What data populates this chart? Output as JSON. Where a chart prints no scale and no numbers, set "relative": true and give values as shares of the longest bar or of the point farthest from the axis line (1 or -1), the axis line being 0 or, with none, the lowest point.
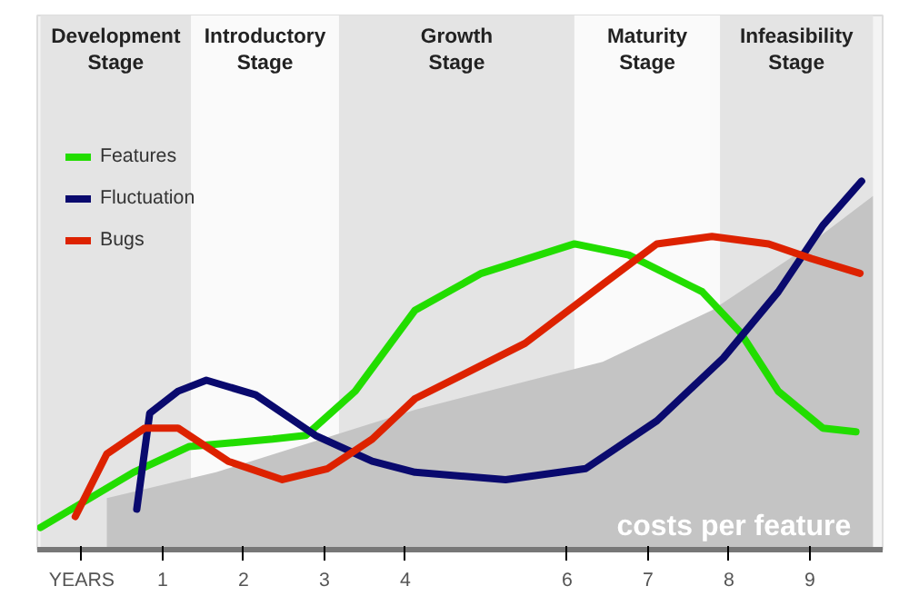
{
  "chart_data": {
    "type": "line",
    "relative": true,
    "legend": "top left",
    "marker": "none",
    "line_style": "solid",
    "grid": false,
    "xlim": [
      -0.55,
      9.9
    ],
    "xticks": [
      {
        "value": 0,
        "label": "YEARS"
      },
      1,
      2,
      3,
      4,
      6,
      7,
      8,
      9
    ],
    "bands": [
      {
        "axis": "x",
        "from": -0.51,
        "to": 1.35,
        "label": "Development Stage",
        "color": "#e4e4e4"
      },
      {
        "axis": "x",
        "from": 1.35,
        "to": 3.18,
        "label": "Introductory Stage",
        "color": "#fafafa"
      },
      {
        "axis": "x",
        "from": 3.18,
        "to": 6.09,
        "label": "Growth Stage",
        "color": "#e4e4e4"
      },
      {
        "axis": "x",
        "from": 6.09,
        "to": 7.89,
        "label": "Maturity Stage",
        "color": "#fafafa"
      },
      {
        "axis": "x",
        "from": 7.89,
        "to": 9.78,
        "label": "Infeasibility Stage",
        "color": "#e4e4e4"
      }
    ],
    "series": [
      {
        "name": "costs per feature",
        "type": "area",
        "color": "#c4c4c4",
        "x": [
          0.31,
          1.66,
          4.12,
          6.44,
          7.79,
          8.82,
          9.78
        ],
        "values": [
          0.14,
          0.21,
          0.38,
          0.51,
          0.65,
          0.8,
          0.96
        ]
      },
      {
        "name": "Features",
        "color": "#22dd00",
        "x": [
          -0.51,
          0.64,
          1.33,
          2.36,
          2.77,
          3.38,
          4.12,
          4.94,
          6.09,
          6.76,
          7.67,
          8.14,
          8.61,
          9.16,
          9.57
        ],
        "values": [
          0.06,
          0.21,
          0.28,
          0.3,
          0.31,
          0.43,
          0.65,
          0.75,
          0.83,
          0.8,
          0.7,
          0.59,
          0.43,
          0.33,
          0.32
        ]
      },
      {
        "name": "Fluctuation",
        "color": "#0a0a6e",
        "x": [
          0.68,
          0.84,
          1.19,
          1.54,
          2.15,
          2.89,
          3.59,
          4.12,
          5.24,
          6.23,
          7.11,
          7.93,
          8.61,
          9.16,
          9.64
        ],
        "values": [
          0.11,
          0.37,
          0.43,
          0.46,
          0.42,
          0.31,
          0.24,
          0.21,
          0.19,
          0.22,
          0.35,
          0.52,
          0.7,
          0.88,
          1.0
        ]
      },
      {
        "name": "Bugs",
        "color": "#dd2200",
        "x": [
          -0.08,
          0.31,
          0.78,
          1.19,
          1.81,
          2.48,
          3.04,
          3.59,
          4.12,
          5.48,
          6.44,
          7.11,
          7.79,
          8.49,
          9.02,
          9.62
        ],
        "values": [
          0.09,
          0.26,
          0.33,
          0.33,
          0.24,
          0.19,
          0.22,
          0.3,
          0.41,
          0.56,
          0.72,
          0.83,
          0.85,
          0.83,
          0.79,
          0.75
        ]
      }
    ]
  }
}
